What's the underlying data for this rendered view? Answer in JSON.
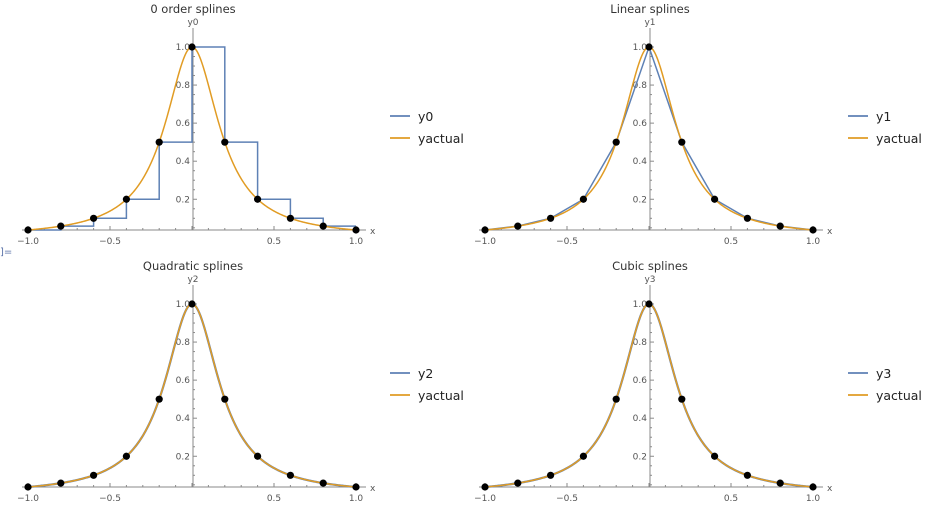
{
  "page": {
    "cell_label_fragment": "]="
  },
  "colors": {
    "spline": "#5e81b5",
    "actual": "#e19c24",
    "points": "#000000",
    "axis": "#8a8a8a",
    "text": "#555555"
  },
  "chart_data": [
    {
      "type": "line",
      "title": "0 order splines",
      "xlabel": "x",
      "ylabel": "y0",
      "xlim": [
        -1.0,
        1.0
      ],
      "ylim": [
        0.0385,
        1.0
      ],
      "xticks": [
        "-1.0",
        "-0.5",
        "0.5",
        "1.0"
      ],
      "yticks": [
        "0.2",
        "0.4",
        "0.6",
        "0.8",
        "1.0"
      ],
      "legend_position": "right",
      "series": [
        {
          "name": "y0",
          "kind": "step",
          "x": [
            -1.0,
            -0.8,
            -0.8,
            -0.6,
            -0.6,
            -0.4,
            -0.4,
            -0.2,
            -0.2,
            0.0,
            0.0,
            0.2,
            0.2,
            0.4,
            0.4,
            0.6,
            0.6,
            0.8,
            0.8,
            1.0
          ],
          "y": [
            0.0385,
            0.0385,
            0.0588,
            0.0588,
            0.1,
            0.1,
            0.2,
            0.2,
            0.5,
            0.5,
            1.0,
            1.0,
            0.5,
            0.5,
            0.2,
            0.2,
            0.1,
            0.1,
            0.0588,
            0.0588
          ]
        },
        {
          "name": "yactual",
          "kind": "smooth",
          "function": "1/(1+25x^2)"
        }
      ],
      "points": {
        "x": [
          -1.0,
          -0.8,
          -0.6,
          -0.4,
          -0.2,
          0.0,
          0.2,
          0.4,
          0.6,
          0.8,
          1.0
        ],
        "y": [
          0.0385,
          0.0588,
          0.1,
          0.2,
          0.5,
          1.0,
          0.5,
          0.2,
          0.1,
          0.0588,
          0.0385
        ]
      }
    },
    {
      "type": "line",
      "title": "Linear splines",
      "xlabel": "x",
      "ylabel": "y1",
      "xlim": [
        -1.0,
        1.0
      ],
      "ylim": [
        0.0385,
        1.0
      ],
      "xticks": [
        "-1.0",
        "-0.5",
        "0.5",
        "1.0"
      ],
      "yticks": [
        "0.2",
        "0.4",
        "0.6",
        "0.8",
        "1.0"
      ],
      "legend_position": "right",
      "series": [
        {
          "name": "y1",
          "kind": "linear",
          "x": [
            -1.0,
            -0.8,
            -0.6,
            -0.4,
            -0.2,
            0.0,
            0.2,
            0.4,
            0.6,
            0.8,
            1.0
          ],
          "y": [
            0.0385,
            0.0588,
            0.1,
            0.2,
            0.5,
            1.0,
            0.5,
            0.2,
            0.1,
            0.0588,
            0.0385
          ]
        },
        {
          "name": "yactual",
          "kind": "smooth",
          "function": "1/(1+25x^2)"
        }
      ],
      "points": {
        "x": [
          -1.0,
          -0.8,
          -0.6,
          -0.4,
          -0.2,
          0.0,
          0.2,
          0.4,
          0.6,
          0.8,
          1.0
        ],
        "y": [
          0.0385,
          0.0588,
          0.1,
          0.2,
          0.5,
          1.0,
          0.5,
          0.2,
          0.1,
          0.0588,
          0.0385
        ]
      }
    },
    {
      "type": "line",
      "title": "Quadratic splines",
      "xlabel": "x",
      "ylabel": "y2",
      "xlim": [
        -1.0,
        1.0
      ],
      "ylim": [
        0.0385,
        1.0
      ],
      "xticks": [
        "-1.0",
        "-0.5",
        "0.5",
        "1.0"
      ],
      "yticks": [
        "0.2",
        "0.4",
        "0.6",
        "0.8",
        "1.0"
      ],
      "legend_position": "right",
      "series": [
        {
          "name": "y2",
          "kind": "smooth",
          "function": "1/(1+25x^2)"
        },
        {
          "name": "yactual",
          "kind": "smooth",
          "function": "1/(1+25x^2)"
        }
      ],
      "points": {
        "x": [
          -1.0,
          -0.8,
          -0.6,
          -0.4,
          -0.2,
          0.0,
          0.2,
          0.4,
          0.6,
          0.8,
          1.0
        ],
        "y": [
          0.0385,
          0.0588,
          0.1,
          0.2,
          0.5,
          1.0,
          0.5,
          0.2,
          0.1,
          0.0588,
          0.0385
        ]
      }
    },
    {
      "type": "line",
      "title": "Cubic splines",
      "xlabel": "x",
      "ylabel": "y3",
      "xlim": [
        -1.0,
        1.0
      ],
      "ylim": [
        0.0385,
        1.0
      ],
      "xticks": [
        "-1.0",
        "-0.5",
        "0.5",
        "1.0"
      ],
      "yticks": [
        "0.2",
        "0.4",
        "0.6",
        "0.8",
        "1.0"
      ],
      "legend_position": "right",
      "series": [
        {
          "name": "y3",
          "kind": "smooth",
          "function": "1/(1+25x^2)"
        },
        {
          "name": "yactual",
          "kind": "smooth",
          "function": "1/(1+25x^2)"
        }
      ],
      "points": {
        "x": [
          -1.0,
          -0.8,
          -0.6,
          -0.4,
          -0.2,
          0.0,
          0.2,
          0.4,
          0.6,
          0.8,
          1.0
        ],
        "y": [
          0.0385,
          0.0588,
          0.1,
          0.2,
          0.5,
          1.0,
          0.5,
          0.2,
          0.1,
          0.0588,
          0.0385
        ]
      }
    }
  ]
}
